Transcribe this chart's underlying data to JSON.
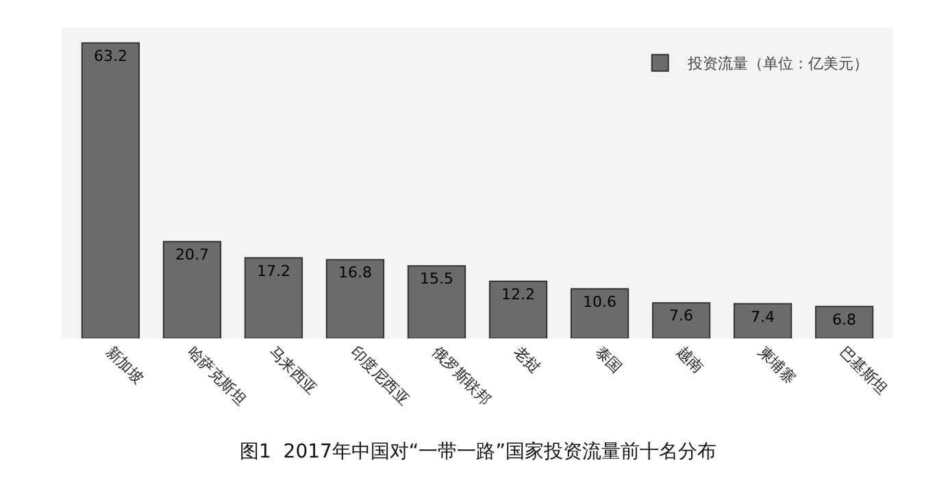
{
  "chart_data": {
    "type": "bar",
    "categories": [
      "新加坡",
      "哈萨克斯坦",
      "马来西亚",
      "印度尼西亚",
      "俄罗斯联邦",
      "老挝",
      "泰国",
      "越南",
      "柬埔寨",
      "巴基斯坦"
    ],
    "series": [
      {
        "name": "投资流量（单位：亿美元）",
        "color": "#6b6b6b",
        "values": [
          63.2,
          20.7,
          17.2,
          16.8,
          15.5,
          12.2,
          10.6,
          7.6,
          7.4,
          6.8
        ]
      }
    ],
    "data_labels": true,
    "legend": "top right",
    "grid": false,
    "annotations": [
      "图1  2017年中国对“一带一路”国家投资流量前十名分布"
    ]
  }
}
